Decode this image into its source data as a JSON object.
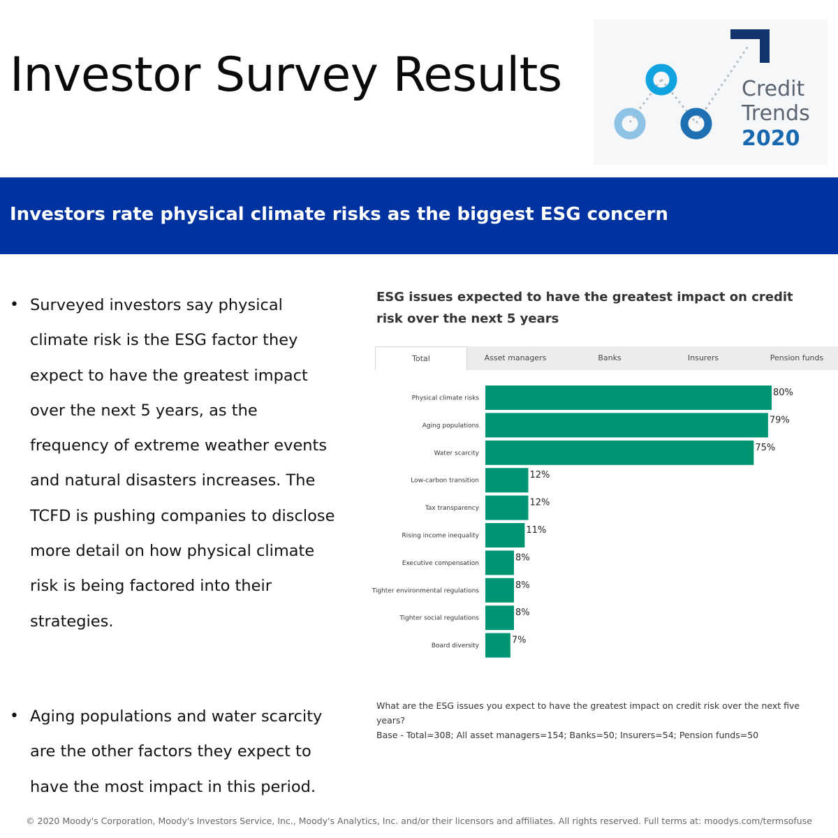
{
  "header": {
    "title": "Investor Survey Results",
    "logo": {
      "line1": "Credit",
      "line2": "Trends",
      "year": "2020"
    }
  },
  "banner": {
    "text": "Investors rate physical climate risks as the biggest ESG concern"
  },
  "bullets": [
    "Surveyed investors say physical climate risk is the ESG factor they expect to have the greatest impact over the next 5 years, as the frequency of extreme weather events and natural disasters increases. The TCFD is pushing companies to disclose more detail on how physical climate risk is being factored into their strategies.",
    "Aging populations and water scarcity are the other factors they expect to have the most impact in this period."
  ],
  "tabs": [
    {
      "label": "Total",
      "active": true
    },
    {
      "label": "Asset managers",
      "active": false
    },
    {
      "label": "Banks",
      "active": false
    },
    {
      "label": "Insurers",
      "active": false
    },
    {
      "label": "Pension funds",
      "active": false
    }
  ],
  "chart_data": {
    "type": "bar",
    "orientation": "horizontal",
    "title": "ESG issues expected to have the greatest impact on credit risk over the next 5 years",
    "categories": [
      "Physical climate risks",
      "Aging populations",
      "Water scarcity",
      "Low-carbon transition",
      "Tax transparency",
      "Rising income inequality",
      "Executive compensation",
      "Tighter environmental regulations",
      "Tighter social regulations",
      "Board diversity"
    ],
    "values": [
      80,
      79,
      75,
      12,
      12,
      11,
      8,
      8,
      8,
      7
    ],
    "value_labels": [
      "80%",
      "79%",
      "75%",
      "12%",
      "12%",
      "11%",
      "8%",
      "8%",
      "8%",
      "7%"
    ],
    "xlim": [
      0,
      80
    ],
    "bar_color": "#009673",
    "grid": false
  },
  "notes": {
    "question": "What are the ESG issues you expect to have the greatest impact on credit risk over the next five years?",
    "base": "Base - Total=308; All asset managers=154; Banks=50; Insurers=54; Pension funds=50"
  },
  "footer": "© 2020 Moody's Corporation, Moody's Investors Service, Inc., Moody's Analytics, Inc. and/or their licensors and affiliates. All rights reserved. Full terms at: moodys.com/termsofuse",
  "colors": {
    "banner": "#0033a0",
    "bar": "#009673",
    "logo_accent": "#1868b0"
  }
}
